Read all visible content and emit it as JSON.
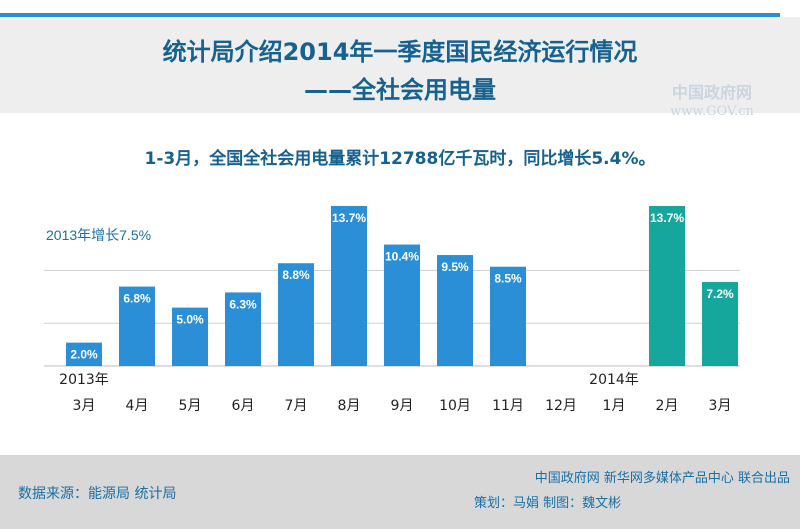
{
  "header": {
    "title_line1": "统计局介绍2014年一季度国民经济运行情况",
    "title_line2": "——全社会用电量"
  },
  "watermark": {
    "line1": "中国政府网",
    "line2": "www.GOV.cn"
  },
  "summary": "1-3月，全国全社会用电量累计12788亿千瓦时，同比增长5.4%。",
  "chart_data": {
    "type": "bar",
    "categories": [
      "3月",
      "4月",
      "5月",
      "6月",
      "7月",
      "8月",
      "9月",
      "10月",
      "11月",
      "12月",
      "1月",
      "2月",
      "3月"
    ],
    "year_labels": [
      {
        "text": "2013年",
        "index": 0
      },
      {
        "text": "2014年",
        "index": 10
      }
    ],
    "values": [
      2.0,
      6.8,
      5.0,
      6.3,
      8.8,
      13.7,
      10.4,
      9.5,
      8.5,
      null,
      null,
      13.7,
      7.2
    ],
    "value_labels": [
      "2.0%",
      "6.8%",
      "5.0%",
      "6.3%",
      "8.8%",
      "13.7%",
      "10.4%",
      "9.5%",
      "8.5%",
      "",
      "",
      "13.7%",
      "7.2%"
    ],
    "annotation": "2013年增长7.5%",
    "reference_line": 7.5,
    "ylim": [
      0,
      13.7
    ],
    "colors": {
      "y2013": "#2a8fd6",
      "y2014": "#15a79b",
      "grid": "#cfcfcf",
      "text": "#222222",
      "annotation": "#1a6fa6"
    }
  },
  "footer": {
    "source": "数据来源：能源局 统计局",
    "credit_line1": "中国政府网 新华网多媒体产品中心 联合出品",
    "credit_line2": "策划：马娟  制图：魏文彬"
  }
}
